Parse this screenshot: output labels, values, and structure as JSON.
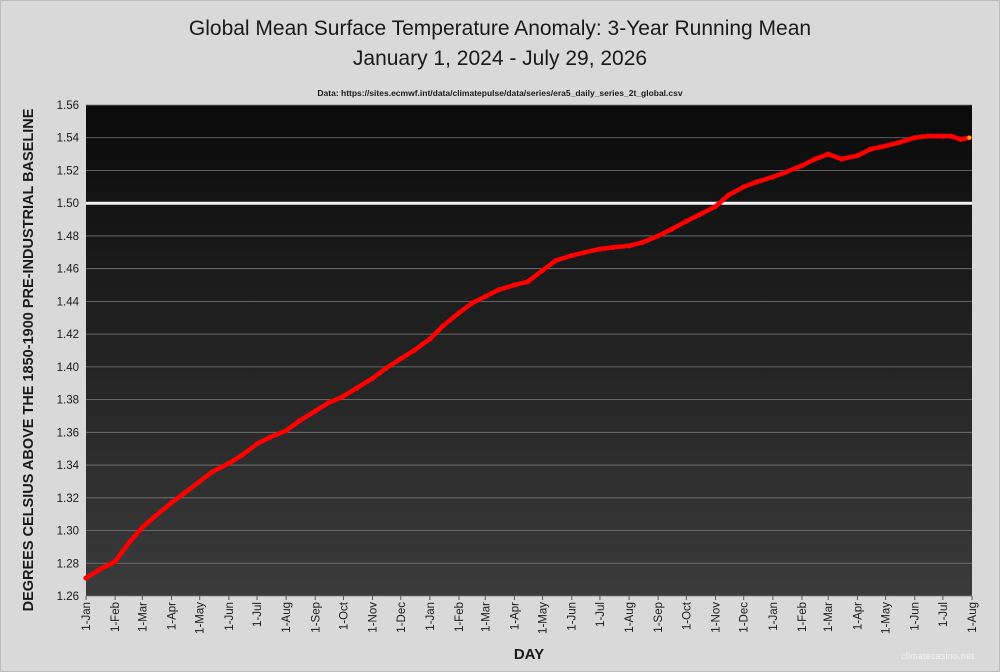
{
  "chart_data": {
    "type": "line",
    "title": "Global Mean Surface Temperature Anomaly: 3-Year Running Mean",
    "subtitle": "January 1, 2024 - July 29, 2026",
    "source_note": "Data: https://sites.ecmwf.int/data/climatepulse/data/series/era5_daily_series_2t_global.csv",
    "xlabel": "DAY",
    "ylabel": "DEGREES CELSIUS ABOVE THE 1850-1900 PRE-INDUSTRIAL BASELINE",
    "x_tick_labels": [
      "1-Jan",
      "1-Feb",
      "1-Mar",
      "1-Apr",
      "1-May",
      "1-Jun",
      "1-Jul",
      "1-Aug",
      "1-Sep",
      "1-Oct",
      "1-Nov",
      "1-Dec",
      "1-Jan",
      "1-Feb",
      "1-Mar",
      "1-Apr",
      "1-May",
      "1-Jun",
      "1-Jul",
      "1-Aug",
      "1-Sep",
      "1-Oct",
      "1-Nov",
      "1-Dec",
      "1-Jan",
      "1-Feb",
      "1-Mar",
      "1-Apr",
      "1-May",
      "1-Jun",
      "1-Jul",
      "1-Aug"
    ],
    "x_tick_dates": [
      "2024-01-01",
      "2024-02-01",
      "2024-03-01",
      "2024-04-01",
      "2024-05-01",
      "2024-06-01",
      "2024-07-01",
      "2024-08-01",
      "2024-09-01",
      "2024-10-01",
      "2024-11-01",
      "2024-12-01",
      "2025-01-01",
      "2025-02-01",
      "2025-03-01",
      "2025-04-01",
      "2025-05-01",
      "2025-06-01",
      "2025-07-01",
      "2025-08-01",
      "2025-09-01",
      "2025-10-01",
      "2025-11-01",
      "2025-12-01",
      "2026-01-01",
      "2026-02-01",
      "2026-03-01",
      "2026-04-01",
      "2026-05-01",
      "2026-06-01",
      "2026-07-01",
      "2026-08-01"
    ],
    "ylim": [
      1.26,
      1.56
    ],
    "y_ticks": [
      "1.26",
      "1.28",
      "1.30",
      "1.32",
      "1.34",
      "1.36",
      "1.38",
      "1.40",
      "1.42",
      "1.44",
      "1.46",
      "1.48",
      "1.50",
      "1.52",
      "1.54",
      "1.56"
    ],
    "grid": true,
    "reference_line": 1.5,
    "series": [
      {
        "color": "#ff0000",
        "points": [
          [
            "2024-01-01",
            1.271
          ],
          [
            "2024-01-15",
            1.276
          ],
          [
            "2024-02-01",
            1.281
          ],
          [
            "2024-02-15",
            1.292
          ],
          [
            "2024-03-01",
            1.302
          ],
          [
            "2024-03-15",
            1.309
          ],
          [
            "2024-04-01",
            1.317
          ],
          [
            "2024-04-15",
            1.323
          ],
          [
            "2024-05-01",
            1.33
          ],
          [
            "2024-05-15",
            1.336
          ],
          [
            "2024-06-01",
            1.341
          ],
          [
            "2024-06-15",
            1.346
          ],
          [
            "2024-07-01",
            1.353
          ],
          [
            "2024-07-15",
            1.357
          ],
          [
            "2024-08-01",
            1.361
          ],
          [
            "2024-08-15",
            1.367
          ],
          [
            "2024-09-01",
            1.373
          ],
          [
            "2024-09-15",
            1.378
          ],
          [
            "2024-10-01",
            1.382
          ],
          [
            "2024-10-15",
            1.387
          ],
          [
            "2024-11-01",
            1.393
          ],
          [
            "2024-11-15",
            1.399
          ],
          [
            "2024-12-01",
            1.405
          ],
          [
            "2024-12-15",
            1.41
          ],
          [
            "2025-01-01",
            1.417
          ],
          [
            "2025-01-15",
            1.425
          ],
          [
            "2025-02-01",
            1.433
          ],
          [
            "2025-02-15",
            1.439
          ],
          [
            "2025-03-01",
            1.443
          ],
          [
            "2025-03-15",
            1.447
          ],
          [
            "2025-04-01",
            1.45
          ],
          [
            "2025-04-15",
            1.452
          ],
          [
            "2025-05-01",
            1.459
          ],
          [
            "2025-05-15",
            1.465
          ],
          [
            "2025-06-01",
            1.468
          ],
          [
            "2025-06-15",
            1.47
          ],
          [
            "2025-07-01",
            1.472
          ],
          [
            "2025-07-15",
            1.473
          ],
          [
            "2025-08-01",
            1.474
          ],
          [
            "2025-08-15",
            1.476
          ],
          [
            "2025-09-01",
            1.48
          ],
          [
            "2025-09-15",
            1.484
          ],
          [
            "2025-10-01",
            1.489
          ],
          [
            "2025-10-15",
            1.493
          ],
          [
            "2025-11-01",
            1.498
          ],
          [
            "2025-11-15",
            1.505
          ],
          [
            "2025-12-01",
            1.51
          ],
          [
            "2025-12-15",
            1.513
          ],
          [
            "2026-01-01",
            1.516
          ],
          [
            "2026-01-15",
            1.519
          ],
          [
            "2026-02-01",
            1.523
          ],
          [
            "2026-02-15",
            1.527
          ],
          [
            "2026-03-01",
            1.53
          ],
          [
            "2026-03-15",
            1.527
          ],
          [
            "2026-04-01",
            1.529
          ],
          [
            "2026-04-15",
            1.533
          ],
          [
            "2026-05-01",
            1.535
          ],
          [
            "2026-05-15",
            1.537
          ],
          [
            "2026-06-01",
            1.54
          ],
          [
            "2026-06-15",
            1.541
          ],
          [
            "2026-07-01",
            1.541
          ],
          [
            "2026-07-10",
            1.541
          ],
          [
            "2026-07-20",
            1.539
          ],
          [
            "2026-07-29",
            1.54
          ]
        ]
      }
    ]
  },
  "watermark": "climatecasino.net",
  "colors": {
    "page_background": "#d9d9d9",
    "plot_top": "#0a0a0a",
    "plot_bottom": "#3a3a3a",
    "line": "#ff0000",
    "reference_line": "#f2f2f2"
  }
}
